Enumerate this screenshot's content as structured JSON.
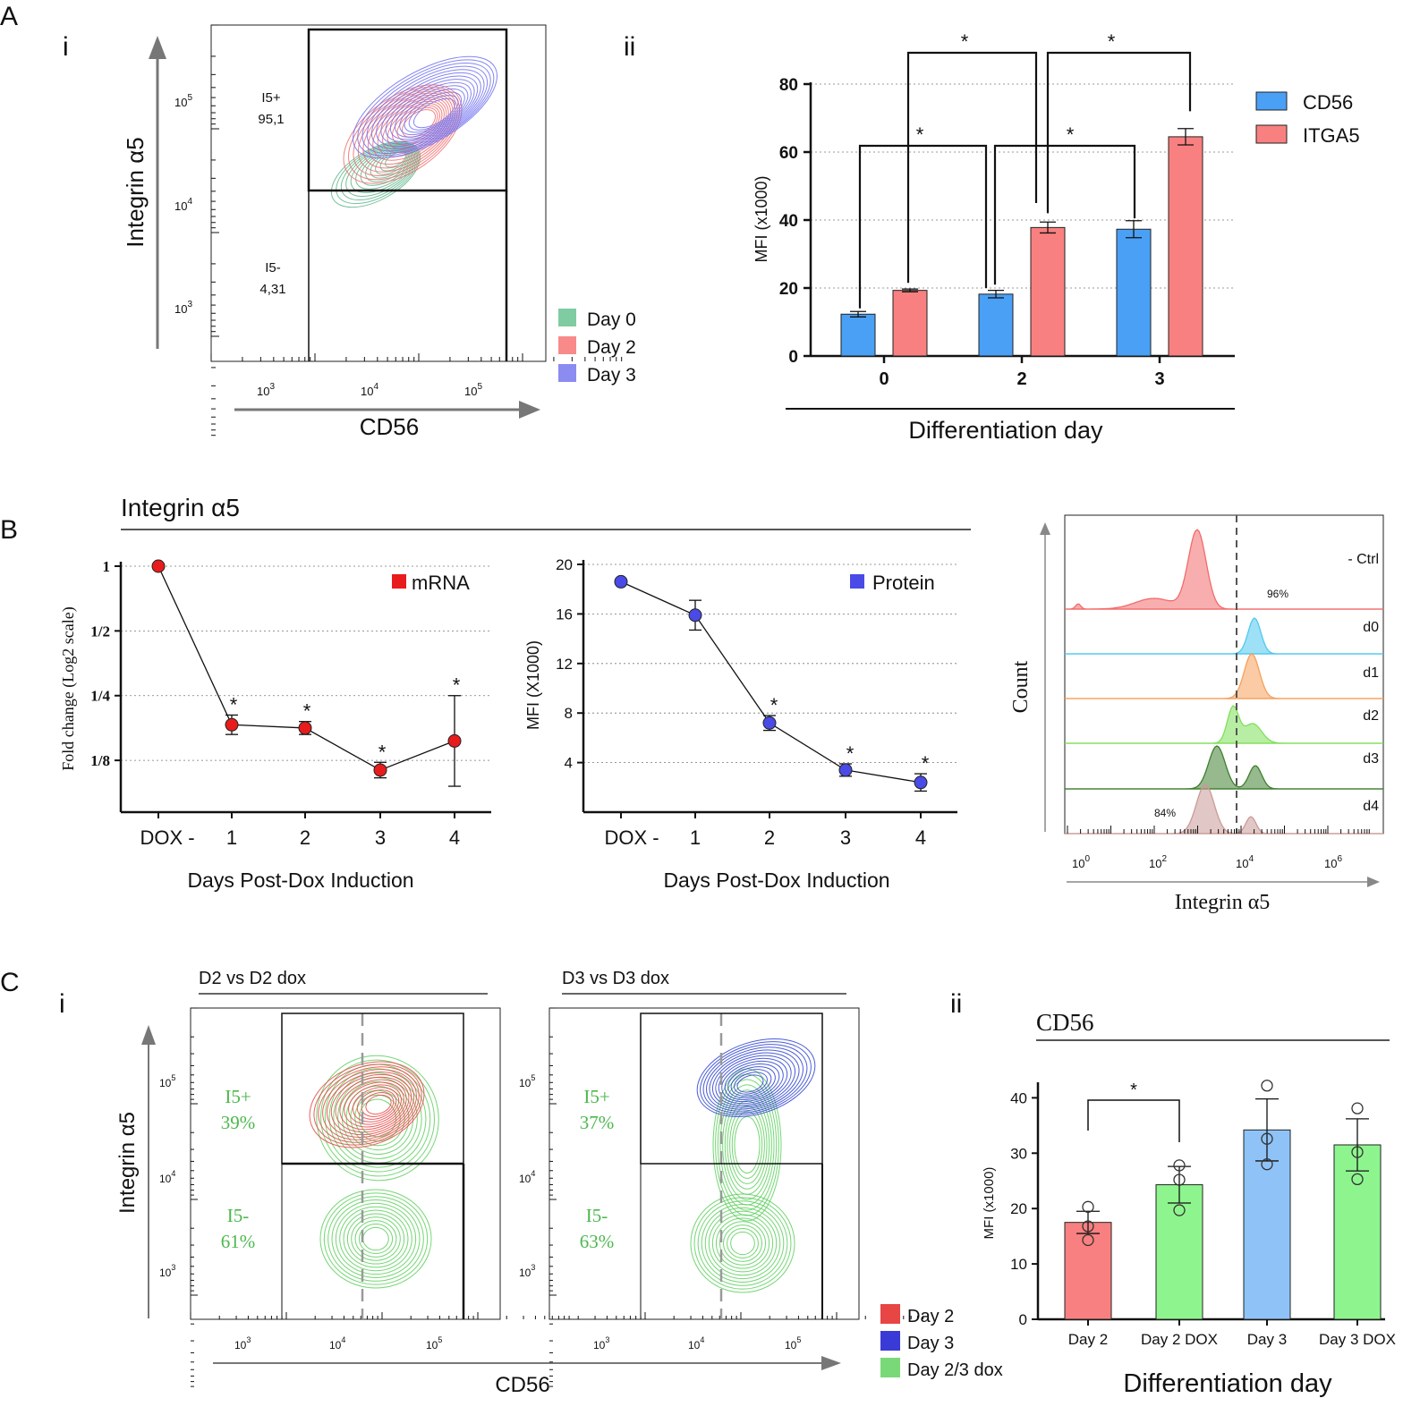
{
  "panel_letters": {
    "A": "A",
    "B": "B",
    "C": "C"
  },
  "colors": {
    "day0": "#5fb58b",
    "day2": "#f26b6b",
    "day3": "#6f6ff0",
    "cd56_bar": "#4aa0f5",
    "itga5_bar": "#f98080",
    "mrna_pt": "#e81c1c",
    "protein_pt": "#4a4ae6",
    "green_dox": "#5ccf5c",
    "c_blue_pt": "#2a3fd0"
  },
  "panelA_i": {
    "sublabel": "i",
    "xlabel": "CD56",
    "ylabel": "Integrin α5",
    "x_ticks": [
      {
        "base": "10",
        "exp": "3"
      },
      {
        "base": "10",
        "exp": "4"
      },
      {
        "base": "10",
        "exp": "5"
      }
    ],
    "y_ticks": [
      {
        "base": "10",
        "exp": "5"
      },
      {
        "base": "10",
        "exp": "4"
      },
      {
        "base": "10",
        "exp": "3"
      }
    ],
    "gate_upper": {
      "name": "I5+",
      "value": "95,1"
    },
    "gate_lower": {
      "name": "I5-",
      "value": "4,31"
    },
    "legend": [
      {
        "label": "Day 0",
        "color": "#5fb58b"
      },
      {
        "label": "Day 2",
        "color": "#f26b6b"
      },
      {
        "label": "Day 3",
        "color": "#6f6ff0"
      }
    ]
  },
  "chart_data": [
    {
      "id": "A_ii",
      "type": "bar",
      "sublabel": "ii",
      "title": "",
      "xlabel": "Differentiation day",
      "ylabel": "MFI (x1000)",
      "categories": [
        "0",
        "2",
        "3"
      ],
      "ylim": [
        0,
        80
      ],
      "yticks": [
        0,
        20,
        40,
        60,
        80
      ],
      "series": [
        {
          "name": "CD56",
          "color": "#4aa0f5",
          "values": [
            12.3,
            18.2,
            37.3
          ],
          "errors": [
            0.8,
            1.1,
            2.5
          ]
        },
        {
          "name": "ITGA5",
          "color": "#f98080",
          "values": [
            19.3,
            37.8,
            64.5
          ],
          "errors": [
            0.4,
            1.6,
            2.4
          ]
        }
      ],
      "significance": [
        "*",
        "*",
        "*",
        "*"
      ],
      "legend_position": "top-right"
    },
    {
      "id": "B_mrna",
      "type": "line",
      "title": "Integrin α5",
      "xlabel": "Days Post-Dox Induction",
      "ylabel": "Fold change (Log2 scale)",
      "categories": [
        "DOX -",
        "1",
        "2",
        "3",
        "4"
      ],
      "ytick_labels": [
        "1",
        "1/2",
        "1/4",
        "1/8"
      ],
      "ytick_log2": [
        0,
        -1,
        -2,
        -3
      ],
      "ylim_log2": [
        -3.8,
        0
      ],
      "series": [
        {
          "name": "mRNA",
          "color": "#e81c1c",
          "log2_values": [
            0,
            -2.45,
            -2.5,
            -3.15,
            -2.7
          ],
          "log2_err": [
            0,
            0.15,
            0.1,
            0.12,
            0.7
          ],
          "sig": [
            "",
            "*",
            "*",
            "*",
            "*"
          ]
        }
      ],
      "legend_position": "top-right"
    },
    {
      "id": "B_protein",
      "type": "line",
      "title": "",
      "xlabel": "Days Post-Dox Induction",
      "ylabel": "MFI (X1000)",
      "categories": [
        "DOX -",
        "1",
        "2",
        "3",
        "4"
      ],
      "ylim": [
        0,
        20
      ],
      "yticks": [
        4,
        8,
        12,
        16,
        20
      ],
      "series": [
        {
          "name": "Protein",
          "color": "#4a4ae6",
          "values": [
            18.6,
            15.9,
            7.2,
            3.4,
            2.4
          ],
          "errors": [
            0,
            1.2,
            0.6,
            0.5,
            0.7
          ],
          "sig": [
            "",
            "",
            "*",
            "*",
            "*"
          ]
        }
      ],
      "legend_position": "top-right"
    },
    {
      "id": "C_ii",
      "type": "bar",
      "sublabel": "ii",
      "title": "CD56",
      "xlabel": "Differentiation day",
      "ylabel": "MFI (x1000)",
      "categories": [
        "Day 2",
        "Day 2 DOX",
        "Day 3",
        "Day 3 DOX"
      ],
      "ylim": [
        0,
        42
      ],
      "yticks": [
        0,
        10,
        20,
        30,
        40
      ],
      "values": [
        17.5,
        24.3,
        34.2,
        31.5
      ],
      "errors": [
        2.0,
        3.3,
        5.6,
        4.7
      ],
      "colors": [
        "#f98080",
        "#8ef58e",
        "#8fc3f7",
        "#8ef58e"
      ],
      "points": [
        [
          20.3,
          16.8,
          14.3
        ],
        [
          27.8,
          25.2,
          19.7
        ],
        [
          42.2,
          32.6,
          28.0
        ],
        [
          38.1,
          30.2,
          25.3
        ]
      ],
      "significance": [
        {
          "between": [
            0,
            1
          ],
          "label": "*"
        }
      ]
    }
  ],
  "panelB_hist": {
    "xlabel": "Integrin α5",
    "ylabel": "Count",
    "x_ticks": [
      {
        "base": "10",
        "exp": "0"
      },
      {
        "base": "10",
        "exp": "2"
      },
      {
        "base": "10",
        "exp": "4"
      },
      {
        "base": "10",
        "exp": "6"
      }
    ],
    "rows": [
      {
        "label": "- Ctrl",
        "color": "#f26b6b"
      },
      {
        "label": "d0",
        "color": "#4fc8ee"
      },
      {
        "label": "d1",
        "color": "#f5a05a"
      },
      {
        "label": "d2",
        "color": "#7ee05a"
      },
      {
        "label": "d3",
        "color": "#3f7f2f"
      },
      {
        "label": "d4",
        "color": "#c99a98"
      }
    ],
    "pct_top": "96%",
    "pct_bottom": "84%"
  },
  "panelC_i": {
    "sublabel": "i",
    "left_title": "D2 vs D2 dox",
    "right_title": "D3 vs D3 dox",
    "xlabel": "CD56",
    "ylabel": "Integrin α5",
    "x_ticks": [
      {
        "base": "10",
        "exp": "3"
      },
      {
        "base": "10",
        "exp": "4"
      },
      {
        "base": "10",
        "exp": "5"
      }
    ],
    "y_ticks": [
      {
        "base": "10",
        "exp": "5"
      },
      {
        "base": "10",
        "exp": "4"
      },
      {
        "base": "10",
        "exp": "3"
      }
    ],
    "left_gates": {
      "upper_name": "I5+",
      "upper_value": "39%",
      "lower_name": "I5-",
      "lower_value": "61%"
    },
    "right_gates": {
      "upper_name": "I5+",
      "upper_value": "37%",
      "lower_name": "I5-",
      "lower_value": "63%"
    },
    "legend": [
      {
        "label": "Day 2",
        "color": "#e84545"
      },
      {
        "label": "Day 3",
        "color": "#3a3ad6"
      },
      {
        "label": "Day 2/3 dox",
        "color": "#79d979"
      }
    ]
  }
}
